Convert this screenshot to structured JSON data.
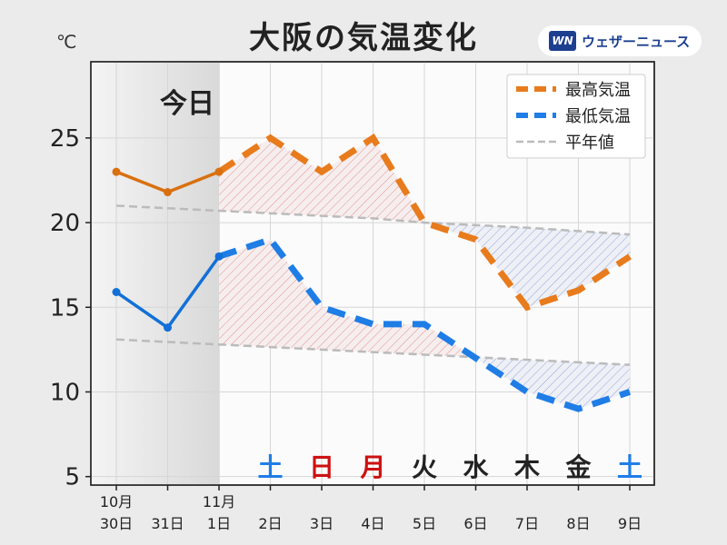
{
  "title": "大阪の気温変化",
  "unit": "℃",
  "logo": {
    "mark": "WN",
    "text": "ウェザーニュース"
  },
  "today_label": "今日",
  "chart_data": {
    "type": "line",
    "categories": [
      "10月 30日",
      "31日",
      "11月 1日",
      "2日",
      "3日",
      "4日",
      "5日",
      "6日",
      "7日",
      "8日",
      "9日"
    ],
    "month_labels": [
      "10月",
      "",
      "11月",
      "",
      "",
      "",
      "",
      "",
      "",
      "",
      ""
    ],
    "day_labels": [
      "30日",
      "31日",
      "1日",
      "2日",
      "3日",
      "4日",
      "5日",
      "6日",
      "7日",
      "8日",
      "9日"
    ],
    "weekdays": [
      "",
      "",
      "",
      "土",
      "日",
      "月",
      "火",
      "水",
      "木",
      "金",
      "土"
    ],
    "ylim": [
      4.5,
      29.5
    ],
    "yticks": [
      5,
      10,
      15,
      20,
      25
    ],
    "grid": true,
    "legend_position": "top-right",
    "series": [
      {
        "name": "最高気温",
        "color": "#e87b1c",
        "values": [
          23.0,
          21.8,
          23.0,
          25.0,
          23.0,
          25.0,
          20.0,
          19.0,
          15.0,
          16.0,
          18.0
        ]
      },
      {
        "name": "最低気温",
        "color": "#1f7de6",
        "values": [
          15.9,
          13.8,
          18.0,
          19.0,
          15.0,
          14.0,
          14.0,
          12.0,
          10.0,
          9.0,
          10.0
        ]
      }
    ],
    "normal": {
      "name": "平年値",
      "color": "#bbbbbb",
      "high": [
        21.0,
        20.85,
        20.7,
        20.55,
        20.4,
        20.25,
        20.0,
        19.85,
        19.7,
        19.5,
        19.3
      ],
      "low": [
        13.1,
        12.95,
        12.8,
        12.65,
        12.5,
        12.35,
        12.2,
        12.05,
        11.9,
        11.75,
        11.6
      ]
    },
    "observed_until_index": 2
  }
}
